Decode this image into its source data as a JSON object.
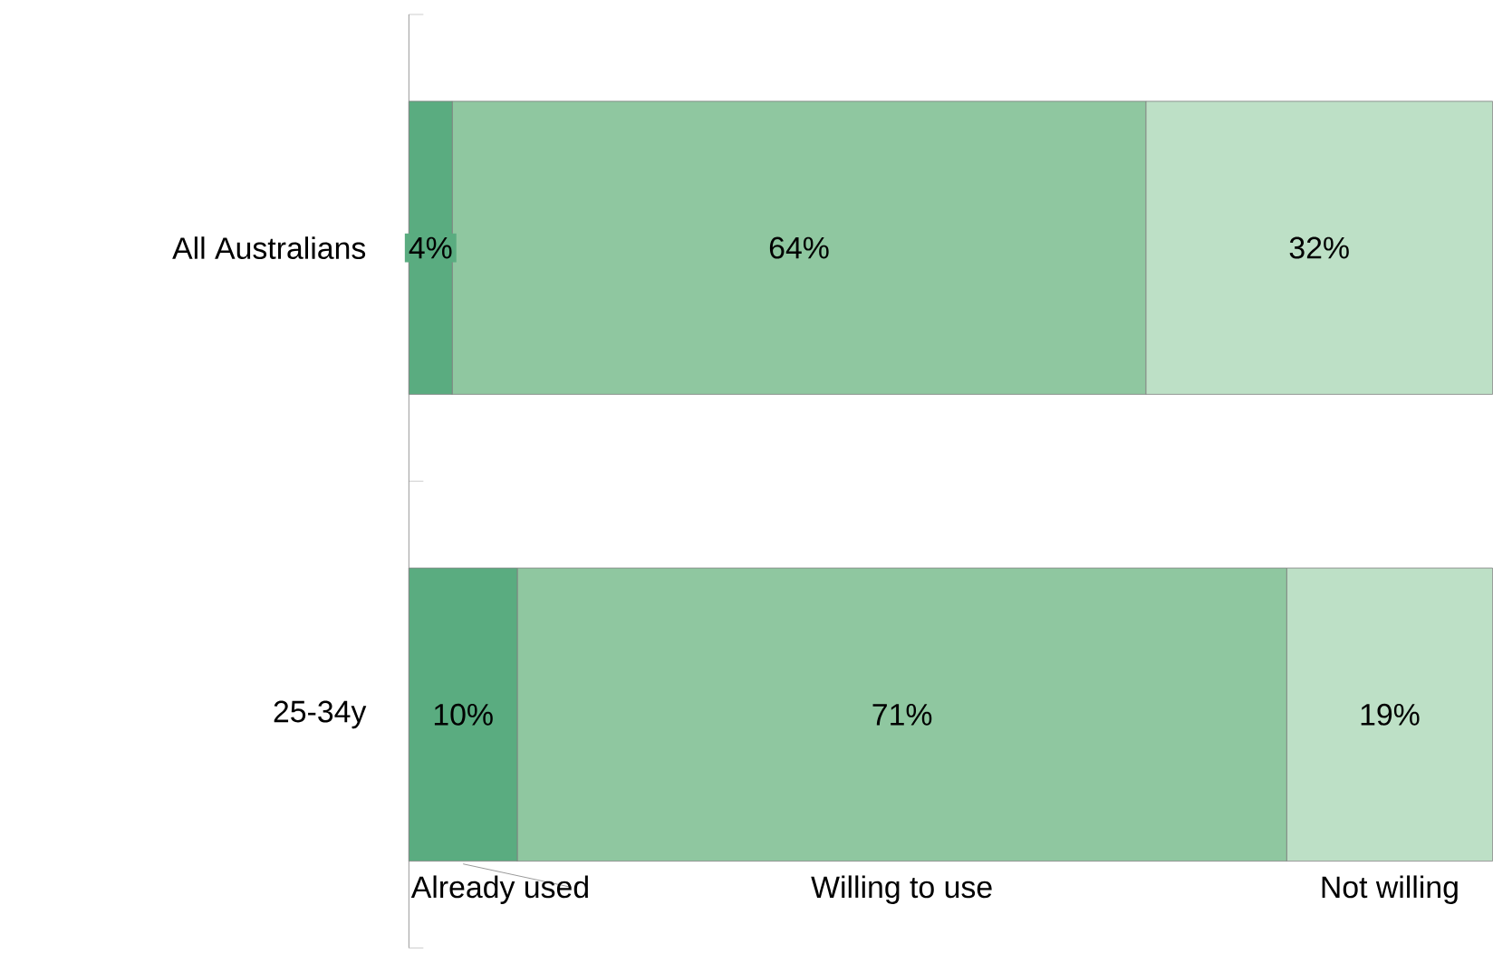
{
  "chart_data": {
    "type": "bar",
    "orientation": "horizontal",
    "stacked": true,
    "categories": [
      "All Australians",
      "25-34y"
    ],
    "xlim": [
      0,
      100
    ],
    "tick_labels": "y",
    "series": [
      {
        "name": "Already used",
        "color": "#5aac80",
        "values": [
          4,
          10
        ],
        "value_labels": [
          "4%",
          "10%"
        ]
      },
      {
        "name": "Willing to use",
        "color": "#8fc7a0",
        "values": [
          64,
          71
        ],
        "value_labels": [
          "64%",
          "71%"
        ]
      },
      {
        "name": "Not willing",
        "color": "#bde0c6",
        "values": [
          32,
          19
        ],
        "value_labels": [
          "32%",
          "19%"
        ]
      }
    ]
  }
}
